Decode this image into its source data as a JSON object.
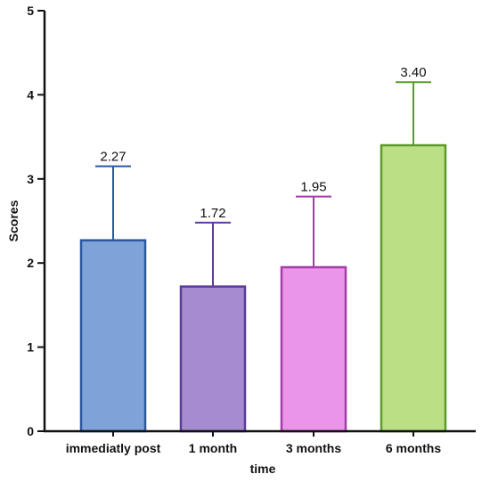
{
  "chart_data": {
    "type": "bar",
    "categories": [
      "immediatly post",
      "1 month",
      "3 months",
      "6 months"
    ],
    "values": [
      2.27,
      1.72,
      1.95,
      3.4
    ],
    "error_upper": [
      3.15,
      2.48,
      2.79,
      4.15
    ],
    "value_labels": [
      "2.27",
      "1.72",
      "1.95",
      "3.40"
    ],
    "xlabel": "time",
    "ylabel": "Scores",
    "ylim": [
      0,
      5
    ],
    "yticks": [
      "0",
      "1",
      "2",
      "3",
      "4",
      "5"
    ],
    "grid": false,
    "fill_colors": [
      "#7ea3d8",
      "#a78bd0",
      "#ea94ea",
      "#badf84"
    ],
    "edge_colors": [
      "#2d56a0",
      "#5b3c9c",
      "#a43ca8",
      "#5c9b2b"
    ]
  }
}
